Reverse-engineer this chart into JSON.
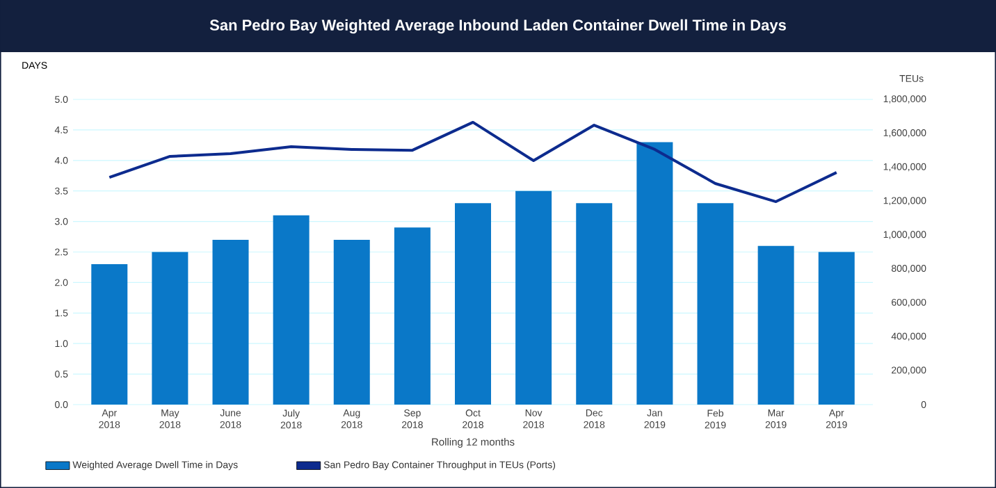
{
  "chart_data": {
    "type": "bar",
    "title": "San Pedro Bay Weighted Average Inbound Laden Container Dwell Time in Days",
    "xlabel": "Rolling 12 months",
    "ylabel": "DAYS",
    "y2label": "TEUs",
    "categories": [
      "Apr 2018",
      "May 2018",
      "June 2018",
      "July 2018",
      "Aug 2018",
      "Sep 2018",
      "Oct 2018",
      "Nov 2018",
      "Dec 2018",
      "Jan 2019",
      "Feb 2019",
      "Mar 2019",
      "Apr 2019"
    ],
    "series": [
      {
        "name": "Weighted Average Dwell Time in Days",
        "color": "#0a78c8",
        "values": [
          2.3,
          2.5,
          2.7,
          3.1,
          2.7,
          2.9,
          3.3,
          3.5,
          3.3,
          4.3,
          3.3,
          2.6,
          2.5
        ]
      },
      {
        "name": "San Pedro Bay Container Throughput in TEUs (Ports)",
        "type": "line",
        "axis": "y2",
        "color": "#0d2b8e",
        "values": [
          1340000,
          1464000,
          1480000,
          1521000,
          1505000,
          1500000,
          1665000,
          1439000,
          1648000,
          1505000,
          1304000,
          1197000,
          1369000
        ]
      }
    ],
    "ylim": [
      0,
      5
    ],
    "yticks": [
      {
        "value": 0,
        "label": "0.0"
      },
      {
        "value": 0.5,
        "label": "0.5"
      },
      {
        "value": 1,
        "label": "1.0"
      },
      {
        "value": 1.5,
        "label": "1.5"
      },
      {
        "value": 2,
        "label": "2.0"
      },
      {
        "value": 2.5,
        "label": "2.5"
      },
      {
        "value": 3,
        "label": "3.0"
      },
      {
        "value": 3.5,
        "label": "3.5"
      },
      {
        "value": 4,
        "label": "4.0"
      },
      {
        "value": 4.5,
        "label": "4.5"
      },
      {
        "value": 5,
        "label": "5.0"
      }
    ],
    "y2lim": [
      0,
      1800000
    ],
    "y2ticks": [
      0,
      {
        "value": 200000,
        "label": "200,000"
      },
      {
        "value": 400000,
        "label": "400,000"
      },
      {
        "value": 600000,
        "label": "600,000"
      },
      {
        "value": 800000,
        "label": "800,000"
      },
      {
        "value": 1000000,
        "label": "1,000,000"
      },
      {
        "value": 1200000,
        "label": "1,200,000"
      },
      {
        "value": 1400000,
        "label": "1,400,000"
      },
      {
        "value": 1600000,
        "label": "1,600,000"
      },
      {
        "value": 1800000,
        "label": "1,800,000"
      }
    ],
    "grid": "y",
    "legend": "bottom left",
    "marker": "none",
    "line_style": "solid"
  }
}
